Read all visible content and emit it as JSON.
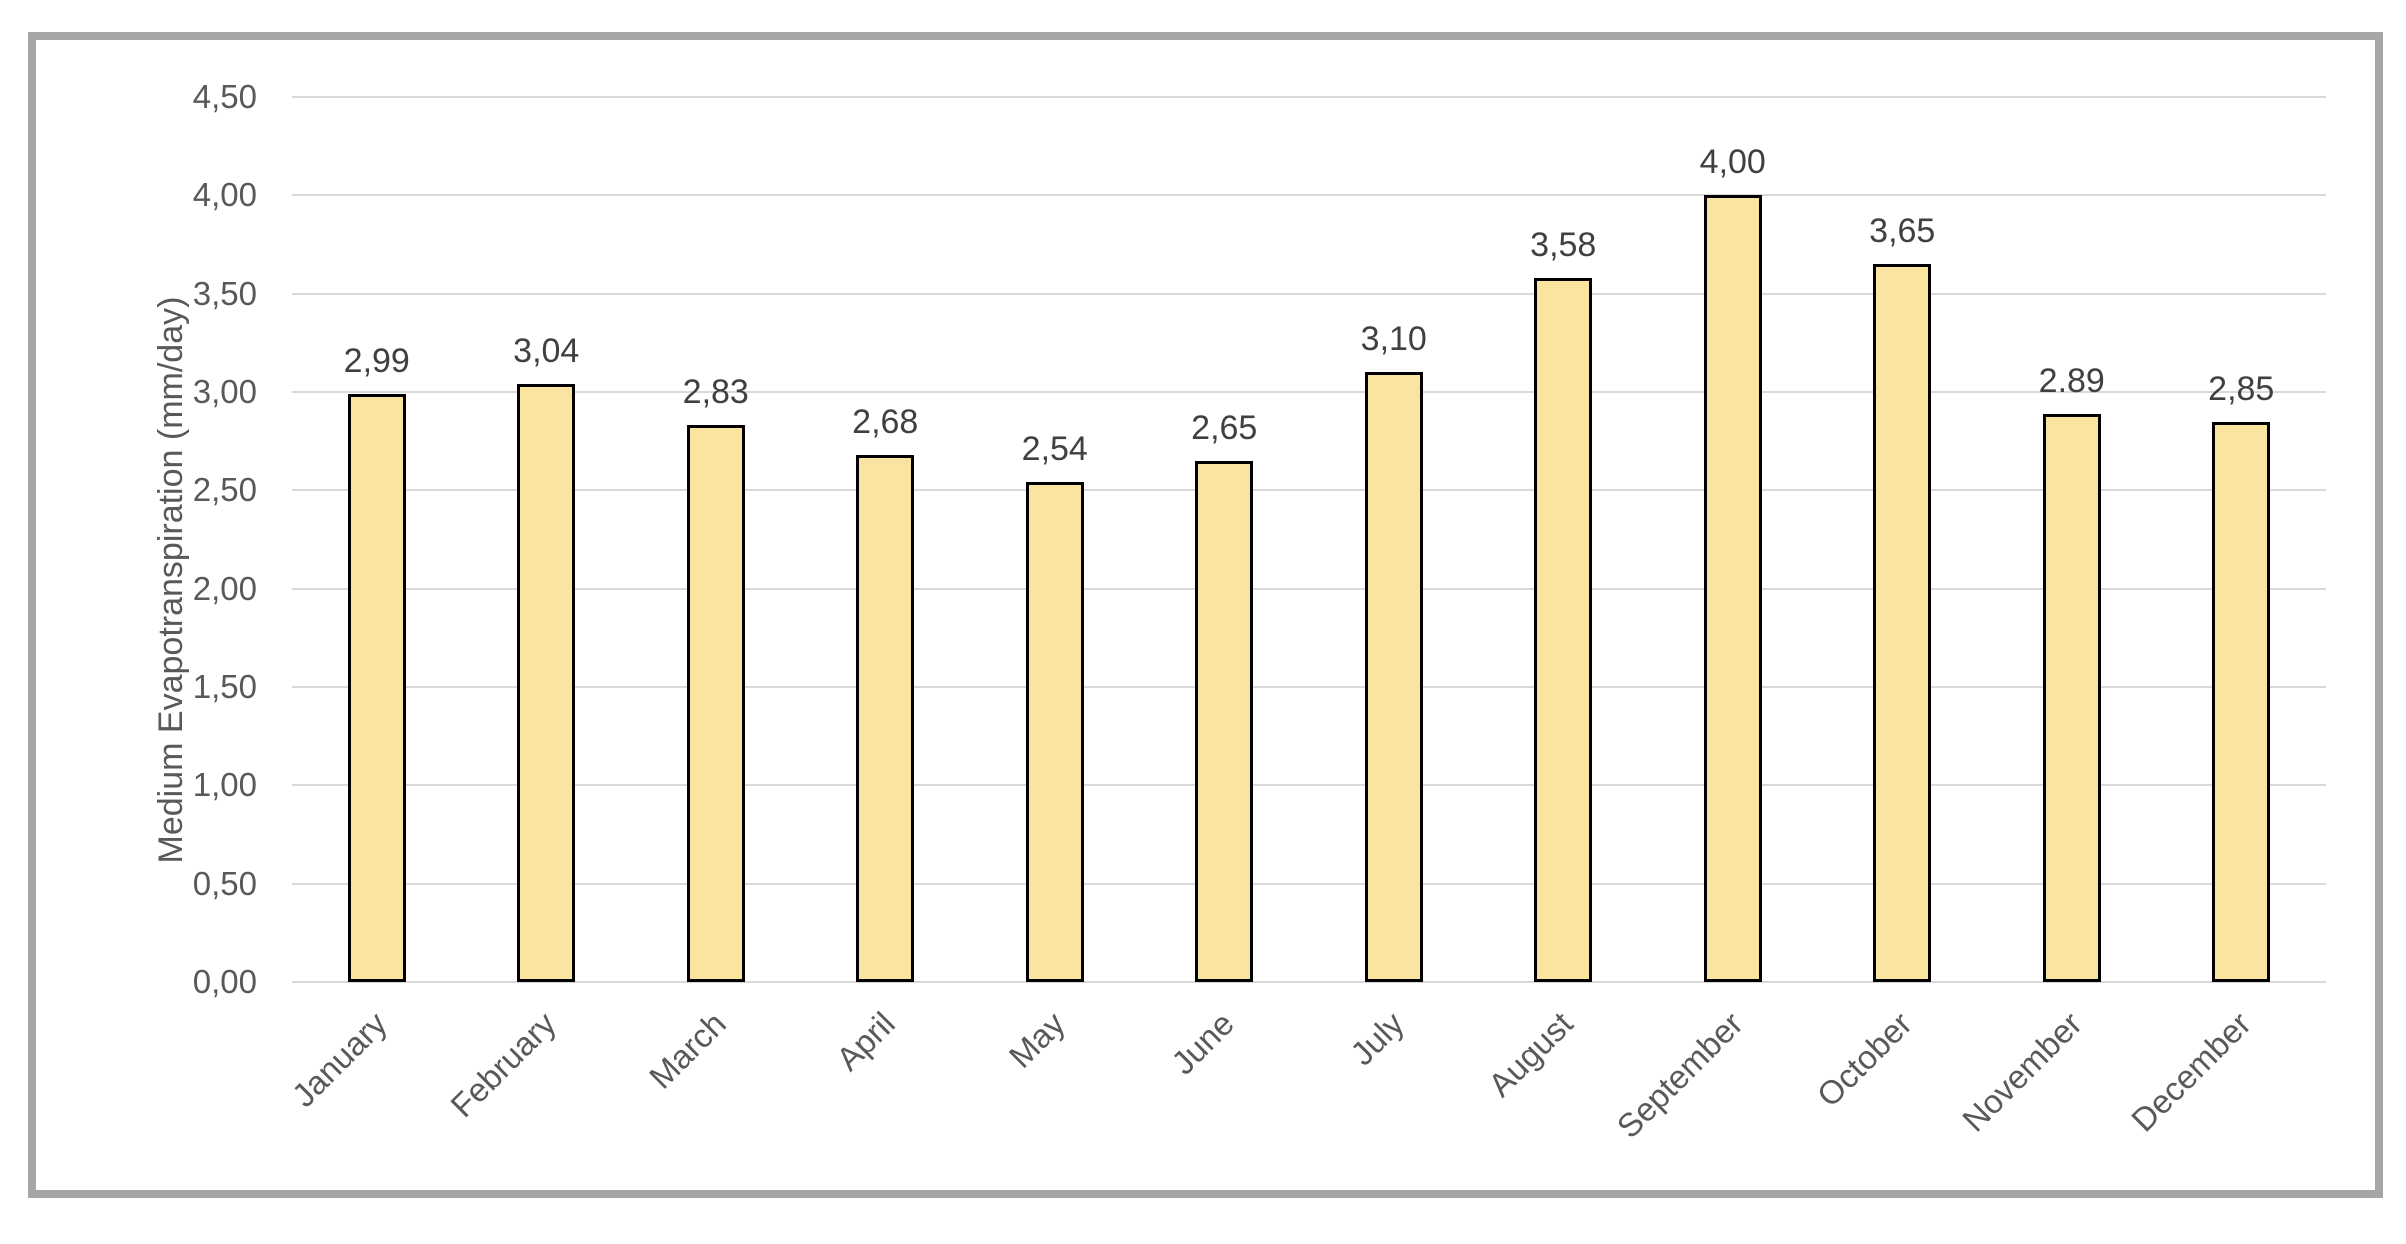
{
  "figure": {
    "frame_border_color": "#a6a6a6",
    "background_color": "#ffffff"
  },
  "chart_data": {
    "type": "bar",
    "title": "",
    "xlabel": "",
    "ylabel": "Medium Evapotranspiration (mm/day)",
    "categories": [
      "January",
      "February",
      "March",
      "April",
      "May",
      "June",
      "July",
      "August",
      "September",
      "October",
      "November",
      "December"
    ],
    "values": [
      2.99,
      3.04,
      2.83,
      2.68,
      2.54,
      2.65,
      3.1,
      3.58,
      4.0,
      3.65,
      2.89,
      2.85
    ],
    "data_labels": [
      "2,99",
      "3,04",
      "2,83",
      "2,68",
      "2,54",
      "2,65",
      "3,10",
      "3,58",
      "4,00",
      "3,65",
      "2.89",
      "2,85"
    ],
    "ylim": [
      0,
      4.5
    ],
    "ytick_step": 0.5,
    "ytick_labels": [
      "0,00",
      "0,50",
      "1,00",
      "1,50",
      "2,00",
      "2,50",
      "3,00",
      "3,50",
      "4,00",
      "4,50"
    ],
    "grid": true,
    "legend_position": "none",
    "x_label_rotation_deg": 45,
    "colors": {
      "bar_fill": "#fbe3a0",
      "bar_border": "#000000",
      "gridline": "#d9d9d9",
      "axis_tick_text": "#595959",
      "data_label_text": "#404040"
    }
  }
}
